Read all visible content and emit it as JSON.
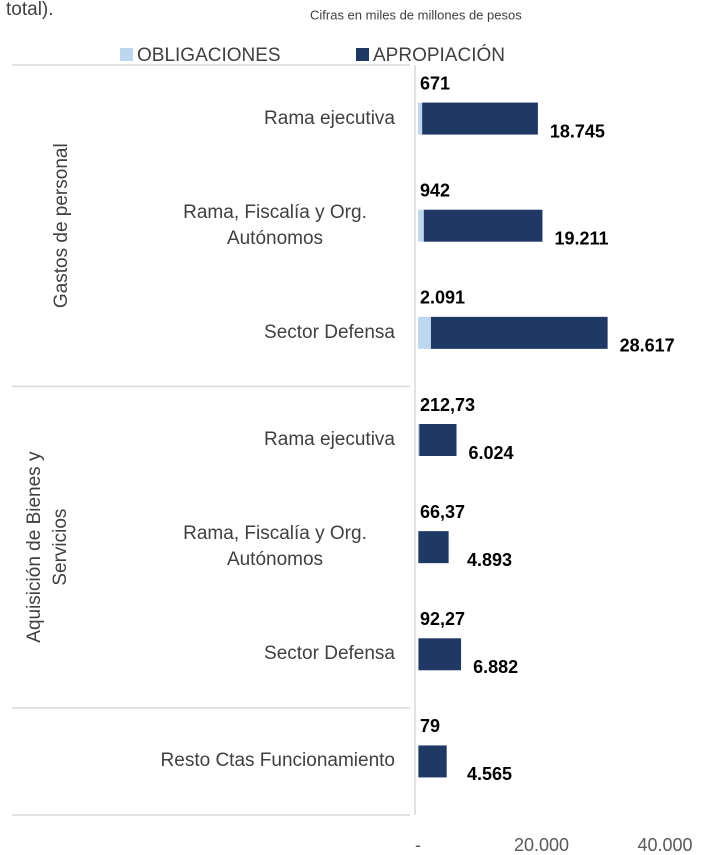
{
  "chart_data": {
    "type": "stacked-barh",
    "caption": "total).",
    "subtitle": "Cifras en miles de millones de pesos",
    "groups": [
      {
        "name": "Gastos de personal",
        "categories": [
          "Rama ejecutiva",
          "Rama, Fiscalía y Org. Autónomos",
          "Sector Defensa"
        ]
      },
      {
        "name": "Aquisición de Bienes y Servicios",
        "categories": [
          "Rama ejecutiva",
          "Rama, Fiscalía y Org. Autónomos",
          "Sector Defensa"
        ]
      },
      {
        "name": null,
        "categories": [
          "Resto Ctas Funcionamiento"
        ]
      }
    ],
    "series": [
      {
        "name": "OBLIGACIONES",
        "color": "#bdd7ee",
        "values": [
          671,
          942,
          2091,
          212.73,
          66.37,
          92.27,
          79
        ],
        "value_labels": [
          "671",
          "942",
          "2.091",
          "212,73",
          "66,37",
          "92,27",
          "79"
        ]
      },
      {
        "name": "APROPIACIÓN",
        "color": "#1f3864",
        "values": [
          18745,
          19211,
          28617,
          6024,
          4893,
          6882,
          4565
        ],
        "value_labels": [
          "18.745",
          "19.211",
          "28.617",
          "6.024",
          "4.893",
          "6.882",
          "4.565"
        ]
      }
    ],
    "xlim": [
      0,
      40000
    ],
    "xticks": [
      {
        "value": 0,
        "label": "-"
      },
      {
        "value": 20000,
        "label": "20.000"
      },
      {
        "value": 40000,
        "label": "40.000"
      }
    ]
  }
}
